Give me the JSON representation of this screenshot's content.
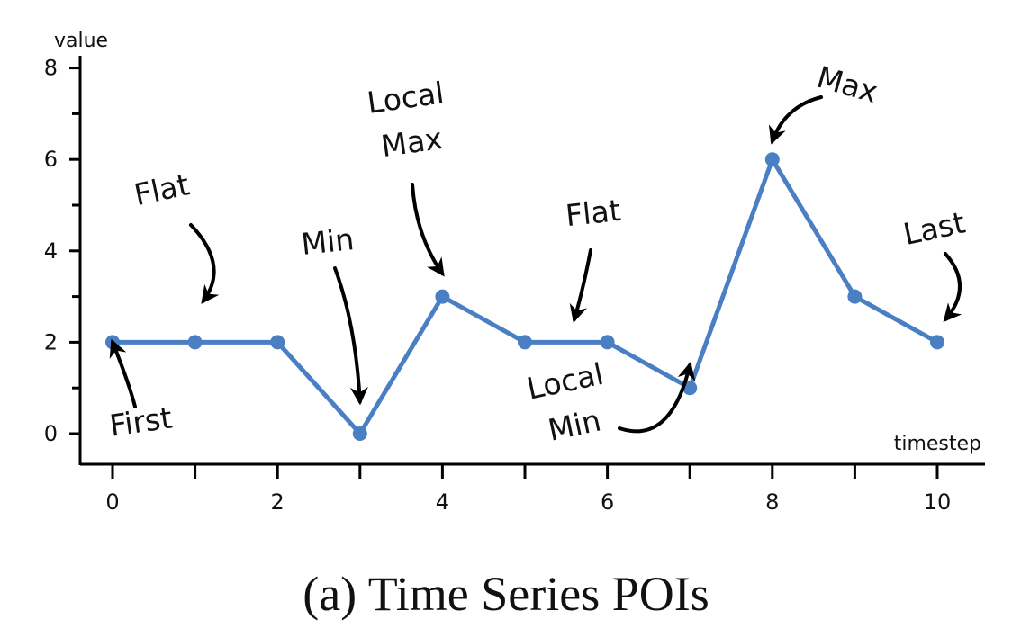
{
  "chart_data": {
    "type": "line",
    "title": "",
    "caption": "(a) Time Series POIs",
    "xlabel": "timestep",
    "ylabel": "value",
    "xlim": [
      0,
      10
    ],
    "ylim": [
      0,
      8
    ],
    "x_ticks": [
      0,
      2,
      4,
      6,
      8,
      10
    ],
    "x_minor_ticks": [
      1,
      3,
      5,
      7,
      9
    ],
    "y_ticks": [
      0,
      2,
      4,
      6,
      8
    ],
    "y_minor_ticks": [
      1,
      3,
      5,
      7
    ],
    "grid": false,
    "legend": "none",
    "line_color": "#4a7fc4",
    "x": [
      0,
      1,
      2,
      3,
      4,
      5,
      6,
      7,
      8,
      9,
      10
    ],
    "y": [
      2,
      2,
      2,
      0,
      3,
      2,
      2,
      1,
      6,
      3,
      2
    ],
    "annotations": [
      {
        "id": "first",
        "lines": [
          "First"
        ],
        "target": [
          0,
          2
        ]
      },
      {
        "id": "flat-1",
        "lines": [
          "Flat"
        ],
        "target": [
          1.1,
          2.9
        ]
      },
      {
        "id": "min",
        "lines": [
          "Min"
        ],
        "target": [
          3,
          0.7
        ]
      },
      {
        "id": "local-max",
        "lines": [
          "Local",
          "Max"
        ],
        "target": [
          4,
          3.5
        ]
      },
      {
        "id": "flat-2",
        "lines": [
          "Flat"
        ],
        "target": [
          5.6,
          2.5
        ]
      },
      {
        "id": "local-min",
        "lines": [
          "Local",
          "Min"
        ],
        "target": [
          7,
          1.5
        ]
      },
      {
        "id": "max",
        "lines": [
          "Max"
        ],
        "target": [
          8,
          6.4
        ]
      },
      {
        "id": "last",
        "lines": [
          "Last"
        ],
        "target": [
          10.1,
          2.5
        ]
      }
    ]
  }
}
